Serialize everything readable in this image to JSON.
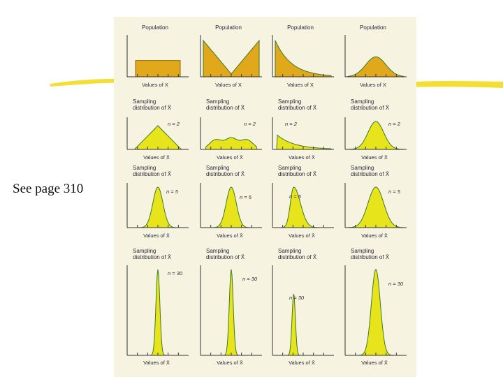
{
  "side_note": "See page 310",
  "colors": {
    "paper": "#f7f3e1",
    "population_fill": "#e0a81a",
    "sampling_fill": "#e8e41c",
    "curve_stroke": "#3f7a28",
    "axis": "#333333",
    "highlighter": "#f2dc2a"
  },
  "figure": {
    "columns": [
      {
        "population": {
          "title": "Population",
          "shape": "uniform",
          "xlabel": "Values of X"
        },
        "samples": [
          {
            "title_lines": [
              "Sampling",
              "distribution of X̄"
            ],
            "n_label": "n = 2",
            "shape": "triangle",
            "xlabel": "Values of X̄"
          },
          {
            "title_lines": [
              "Sampling",
              "distribution of X̄"
            ],
            "n_label": "n = 5",
            "shape": "bell",
            "xlabel": "Values of X̄"
          },
          {
            "title_lines": [
              "Sampling",
              "distribution of X̄"
            ],
            "n_label": "n = 30",
            "shape": "spike",
            "xlabel": "Values of X̄"
          }
        ]
      },
      {
        "population": {
          "title": "Population",
          "shape": "v-shape",
          "xlabel": "Values of X"
        },
        "samples": [
          {
            "title_lines": [
              "Sampling",
              "distribution of X̄"
            ],
            "n_label": "n = 2",
            "shape": "trimodal",
            "xlabel": "Values of X̄"
          },
          {
            "title_lines": [
              "Sampling",
              "distribution of X̄"
            ],
            "n_label": "n = 5",
            "shape": "bell",
            "xlabel": "Values of X̄"
          },
          {
            "title_lines": [
              "Sampling",
              "distribution of X̄"
            ],
            "n_label": "n = 30",
            "shape": "spike",
            "xlabel": "Values of X̄"
          }
        ]
      },
      {
        "population": {
          "title": "Population",
          "shape": "exponential",
          "xlabel": "Values of X"
        },
        "samples": [
          {
            "title_lines": [
              "Sampling",
              "distribution of X̄"
            ],
            "n_label": "n = 2",
            "shape": "right-skewed",
            "xlabel": "Values of X̄"
          },
          {
            "title_lines": [
              "Sampling",
              "distribution of X̄"
            ],
            "n_label": "n = 5",
            "shape": "mild-skew",
            "xlabel": "Values of X̄"
          },
          {
            "title_lines": [
              "Sampling",
              "distribution of X̄"
            ],
            "n_label": "n = 30",
            "shape": "spike",
            "xlabel": "Values of X̄"
          }
        ]
      },
      {
        "population": {
          "title": "Population",
          "shape": "normal",
          "xlabel": "Values of X"
        },
        "samples": [
          {
            "title_lines": [
              "Sampling",
              "distribution of X̄"
            ],
            "n_label": "n = 2",
            "shape": "bell",
            "xlabel": "Values of X̄"
          },
          {
            "title_lines": [
              "Sampling",
              "distribution of X̄"
            ],
            "n_label": "n = 5",
            "shape": "bell",
            "xlabel": "Values of X̄"
          },
          {
            "title_lines": [
              "Sampling",
              "distribution of X̄"
            ],
            "n_label": "n = 30",
            "shape": "spike",
            "xlabel": "Values of X̄"
          }
        ]
      }
    ]
  }
}
